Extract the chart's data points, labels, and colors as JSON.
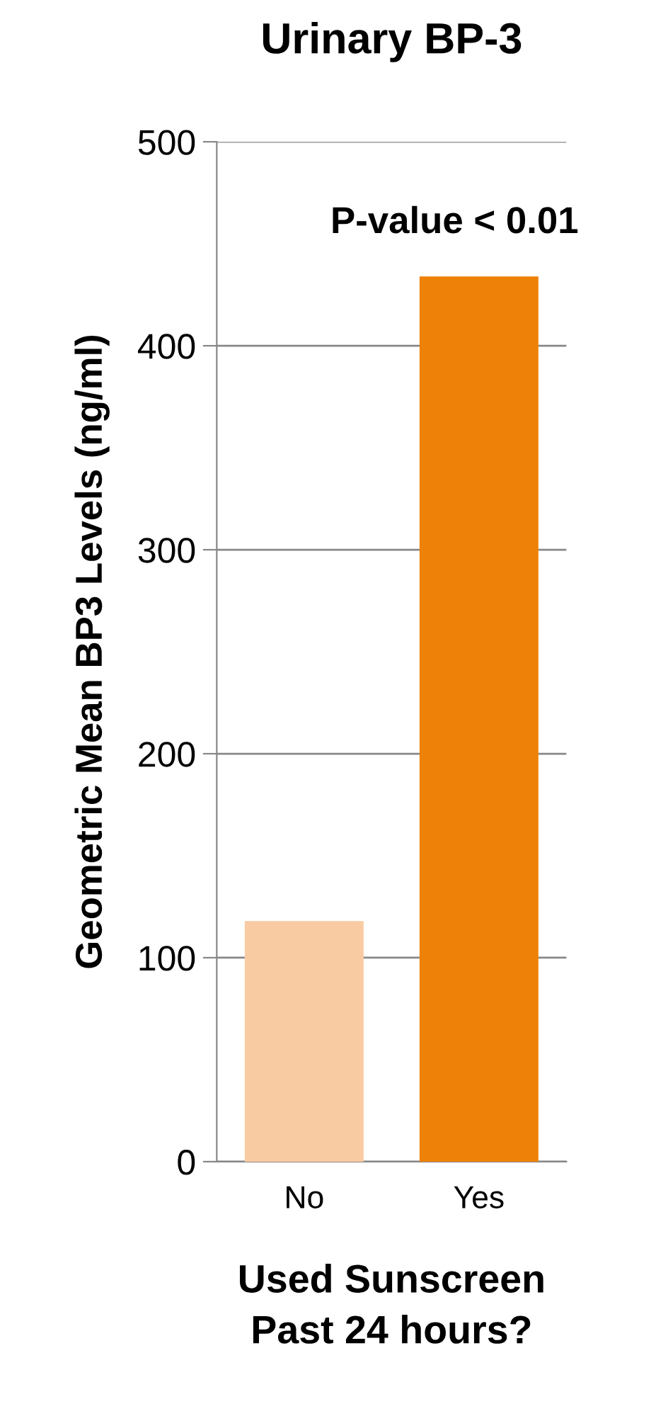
{
  "chart_data": {
    "type": "bar",
    "title": "Urinary BP-3",
    "xlabel": "Used Sunscreen\nPast 24 hours?",
    "ylabel": "Geometric Mean BP3 Levels (ng/ml)",
    "categories": [
      "No",
      "Yes"
    ],
    "values": [
      118,
      434
    ],
    "colors": [
      "#f9cba2",
      "#ee8208"
    ],
    "ylim": [
      0,
      500
    ],
    "yticks": [
      0,
      100,
      200,
      300,
      400,
      500
    ],
    "grid": "y",
    "annotations": [
      "P-value < 0.01"
    ]
  }
}
